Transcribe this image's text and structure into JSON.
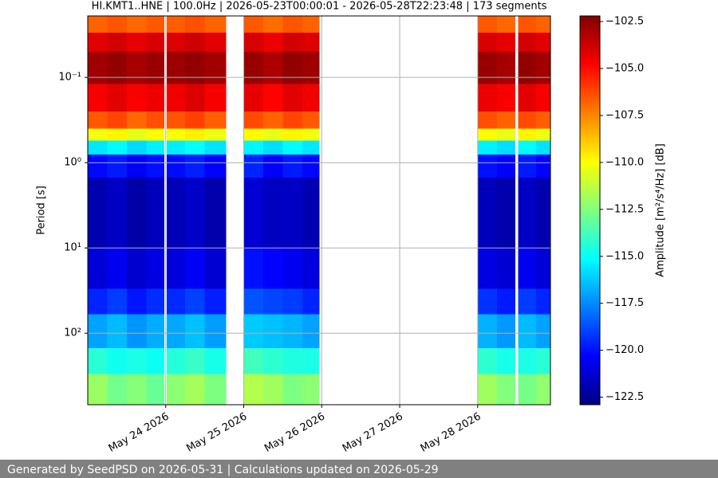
{
  "chart_data": {
    "type": "spectrogram",
    "title": "HI.KMT1..HNE | 100.0Hz | 2026-05-23T00:00:01 - 2026-05-28T22:23:48 | 173 segments",
    "y_label": "Period [s]",
    "colorbar_label": "Amplitude [m²/s⁴/Hz] [dB]",
    "footer": "Generated by SeedPSD on 2026-05-31 | Calculations updated on 2026-05-29",
    "colormap": "jet",
    "grid": true,
    "y_log": true,
    "y_inverted": true,
    "xlim": [
      "2026-05-23T00:00:01",
      "2026-05-28T22:23:48"
    ],
    "xticks": [
      {
        "value": "2026-05-24T00:00:00",
        "label": "May 24 2026"
      },
      {
        "value": "2026-05-25T00:00:00",
        "label": "May 25 2026"
      },
      {
        "value": "2026-05-26T00:00:00",
        "label": "May 26 2026"
      },
      {
        "value": "2026-05-27T00:00:00",
        "label": "May 27 2026"
      },
      {
        "value": "2026-05-28T00:00:00",
        "label": "May 28 2026"
      }
    ],
    "ylim": [
      0.019,
      690
    ],
    "yticks": [
      {
        "value": 0.1,
        "label": "10⁻¹"
      },
      {
        "value": 1,
        "label": "10⁰"
      },
      {
        "value": 10,
        "label": "10¹"
      },
      {
        "value": 100,
        "label": "10²"
      }
    ],
    "zlim": [
      -122.9,
      -102.2
    ],
    "zticks": [
      {
        "value": -102.5,
        "label": "−102.5"
      },
      {
        "value": -105,
        "label": "−105.0"
      },
      {
        "value": -107.5,
        "label": "−107.5"
      },
      {
        "value": -110,
        "label": "−110.0"
      },
      {
        "value": -112.5,
        "label": "−112.5"
      },
      {
        "value": -115,
        "label": "−115.0"
      },
      {
        "value": -117.5,
        "label": "−117.5"
      },
      {
        "value": -120,
        "label": "−120.0"
      },
      {
        "value": -122.5,
        "label": "−122.5"
      }
    ],
    "x_bins": [
      "2026-05-23T00:00:00",
      "2026-05-23T06:00:00",
      "2026-05-23T12:00:00",
      "2026-05-23T18:00:00",
      "2026-05-23T23:30:00",
      "2026-05-24T00:15:00",
      "2026-05-24T06:00:00",
      "2026-05-24T12:00:00",
      "2026-05-24T18:30:00",
      "2026-05-25T00:00:00",
      "2026-05-25T06:00:00",
      "2026-05-25T12:00:00",
      "2026-05-25T18:00:00",
      "2026-05-25T23:15:00",
      "2026-05-28T00:00:00",
      "2026-05-28T06:00:00",
      "2026-05-28T11:30:00",
      "2026-05-28T12:30:00",
      "2026-05-28T18:00:00",
      "2026-05-28T22:23:48"
    ],
    "y_bins": [
      0.019,
      0.03,
      0.05,
      0.12,
      0.25,
      0.4,
      0.55,
      0.8,
      1.5,
      10,
      30,
      60,
      150,
      300,
      690
    ],
    "values": [
      [
        -106.8,
        -106.5,
        -106.9,
        -106.6,
        null,
        -106.7,
        -106.4,
        -106.8,
        null,
        -106.6,
        -107.0,
        -106.5,
        -106.8,
        null,
        -106.6,
        -106.9,
        null,
        -106.5,
        -106.8
      ],
      [
        -104.2,
        -103.9,
        -104.3,
        -104.0,
        null,
        -104.1,
        -103.8,
        -104.2,
        null,
        -104.0,
        -104.4,
        -103.9,
        -104.1,
        null,
        -104.0,
        -104.3,
        null,
        -103.9,
        -104.2
      ],
      [
        -102.9,
        -102.6,
        -103.0,
        -102.7,
        null,
        -102.8,
        -102.6,
        -102.9,
        null,
        -102.7,
        -103.1,
        -102.6,
        -102.8,
        null,
        -102.7,
        -103.0,
        null,
        -102.6,
        -102.9
      ],
      [
        -104.6,
        -104.2,
        -104.7,
        -104.4,
        null,
        -104.5,
        -104.1,
        -104.6,
        null,
        -104.3,
        -104.8,
        -104.2,
        -104.5,
        null,
        -104.4,
        -104.7,
        null,
        -104.2,
        -104.6
      ],
      [
        -106.6,
        -106.2,
        -106.9,
        -106.4,
        null,
        -106.5,
        -106.1,
        -106.7,
        null,
        -106.3,
        -106.8,
        -106.2,
        -106.6,
        null,
        -106.4,
        -106.8,
        null,
        -106.3,
        -106.7
      ],
      [
        -110.2,
        -109.8,
        -110.5,
        -110.0,
        null,
        -110.1,
        -109.7,
        -110.3,
        null,
        -109.9,
        -110.4,
        -109.8,
        -110.2,
        null,
        -110.0,
        -110.4,
        null,
        -109.8,
        -110.3
      ],
      [
        -115.6,
        -115.2,
        -115.9,
        -115.4,
        null,
        -115.5,
        -115.1,
        -115.7,
        null,
        -115.3,
        -115.8,
        -115.2,
        -115.6,
        null,
        -115.4,
        -115.8,
        null,
        -115.2,
        -115.7
      ],
      [
        -120.2,
        -119.8,
        -120.5,
        -120.0,
        null,
        -120.1,
        -119.7,
        -120.3,
        null,
        -119.6,
        -120.4,
        -119.8,
        -120.2,
        null,
        -120.0,
        -120.4,
        null,
        -119.8,
        -120.3
      ],
      [
        -121.9,
        -121.5,
        -122.1,
        -121.7,
        null,
        -121.8,
        -121.4,
        -122.0,
        null,
        -121.2,
        -121.6,
        -121.5,
        -121.9,
        null,
        -121.7,
        -122.0,
        null,
        -121.5,
        -121.9
      ],
      [
        -121.1,
        -120.6,
        -121.3,
        -120.9,
        null,
        -121.0,
        -120.5,
        -121.2,
        null,
        -120.0,
        -120.3,
        -120.6,
        -121.0,
        null,
        -120.9,
        -121.2,
        null,
        -120.6,
        -121.1
      ],
      [
        -119.6,
        -119.1,
        -119.9,
        -119.4,
        null,
        -119.5,
        -119.0,
        -119.7,
        null,
        -118.6,
        -118.9,
        -119.1,
        -119.6,
        null,
        -119.3,
        -119.8,
        null,
        -119.1,
        -119.6
      ],
      [
        -117.0,
        -116.5,
        -117.3,
        -116.8,
        null,
        -116.9,
        -116.4,
        -117.1,
        null,
        -116.2,
        -116.4,
        -116.6,
        -117.0,
        null,
        -116.7,
        -117.2,
        null,
        -116.5,
        -117.0
      ],
      [
        -114.3,
        -114.8,
        -114.6,
        -114.9,
        null,
        -114.4,
        -114.0,
        -114.7,
        null,
        -113.8,
        -114.2,
        -114.5,
        -114.6,
        null,
        -114.2,
        -114.7,
        null,
        -114.6,
        -114.3
      ],
      [
        -112.0,
        -112.8,
        -112.4,
        -113.0,
        null,
        -112.3,
        -111.8,
        -112.6,
        null,
        -111.5,
        -111.9,
        -112.6,
        -112.3,
        null,
        -111.9,
        -112.5,
        null,
        -112.7,
        -112.2
      ]
    ]
  }
}
